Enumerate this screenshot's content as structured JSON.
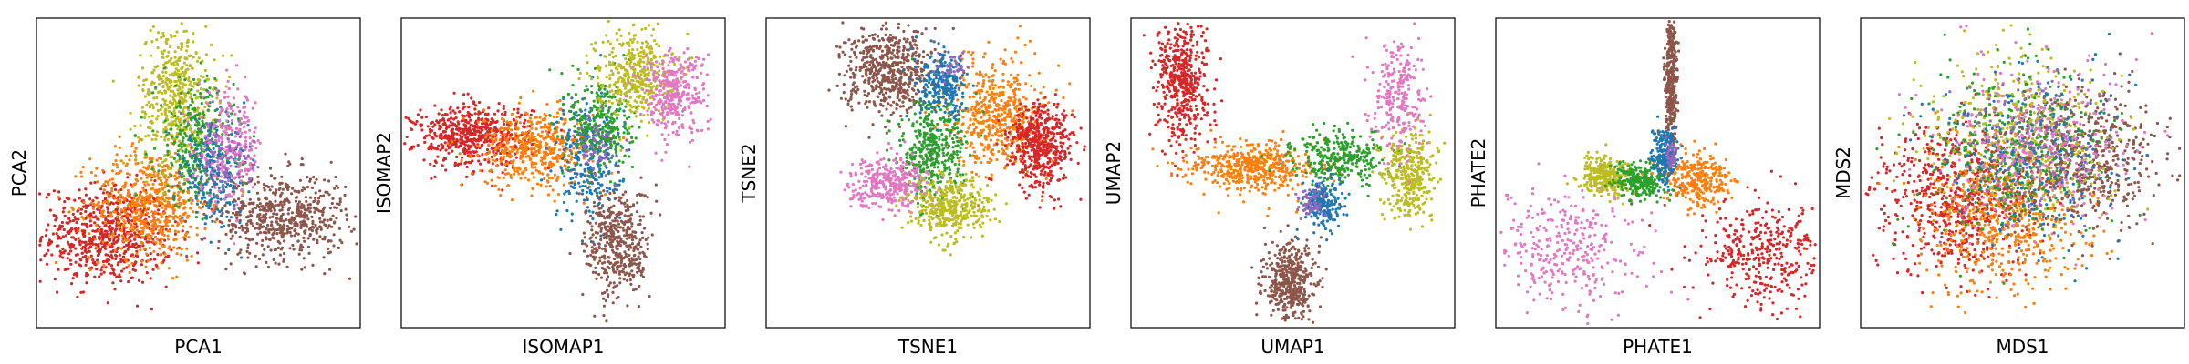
{
  "figure": {
    "description_colors": {
      "blue": "#1f77b4",
      "orange": "#ff7f0e",
      "green": "#2ca02c",
      "red": "#d62728",
      "purple": "#9467bd",
      "brown": "#8c564b",
      "pink": "#e377c2",
      "olive": "#bcbd22"
    }
  },
  "chart_data": [
    {
      "type": "scatter",
      "xlabel": "PCA1",
      "ylabel": "PCA2",
      "grid": false,
      "ticks": false,
      "clusters": [
        {
          "color": "#d62728",
          "center": [
            0.22,
            0.3
          ],
          "spread": [
            0.1,
            0.08
          ],
          "n": 700
        },
        {
          "color": "#ff7f0e",
          "center": [
            0.35,
            0.4
          ],
          "spread": [
            0.09,
            0.09
          ],
          "n": 600
        },
        {
          "color": "#8c564b",
          "center": [
            0.76,
            0.36
          ],
          "spread": [
            0.1,
            0.07
          ],
          "n": 600
        },
        {
          "color": "#bcbd22",
          "center": [
            0.43,
            0.74
          ],
          "spread": [
            0.06,
            0.12
          ],
          "n": 500
        },
        {
          "color": "#2ca02c",
          "center": [
            0.49,
            0.6
          ],
          "spread": [
            0.06,
            0.1
          ],
          "n": 300
        },
        {
          "color": "#1f77b4",
          "center": [
            0.55,
            0.5
          ],
          "spread": [
            0.05,
            0.08
          ],
          "n": 250
        },
        {
          "color": "#e377c2",
          "center": [
            0.6,
            0.58
          ],
          "spread": [
            0.05,
            0.09
          ],
          "n": 250
        },
        {
          "color": "#9467bd",
          "center": [
            0.58,
            0.55
          ],
          "spread": [
            0.04,
            0.06
          ],
          "n": 80
        }
      ]
    },
    {
      "type": "scatter",
      "xlabel": "ISOMAP1",
      "ylabel": "ISOMAP2",
      "grid": false,
      "ticks": false,
      "clusters": [
        {
          "color": "#d62728",
          "center": [
            0.22,
            0.62
          ],
          "spread": [
            0.09,
            0.05
          ],
          "n": 600
        },
        {
          "color": "#ff7f0e",
          "center": [
            0.42,
            0.58
          ],
          "spread": [
            0.09,
            0.06
          ],
          "n": 500
        },
        {
          "color": "#1f77b4",
          "center": [
            0.58,
            0.55
          ],
          "spread": [
            0.05,
            0.1
          ],
          "n": 300
        },
        {
          "color": "#2ca02c",
          "center": [
            0.62,
            0.66
          ],
          "spread": [
            0.05,
            0.08
          ],
          "n": 300
        },
        {
          "color": "#bcbd22",
          "center": [
            0.72,
            0.82
          ],
          "spread": [
            0.06,
            0.07
          ],
          "n": 400
        },
        {
          "color": "#e377c2",
          "center": [
            0.84,
            0.76
          ],
          "spread": [
            0.05,
            0.07
          ],
          "n": 350
        },
        {
          "color": "#8c564b",
          "center": [
            0.67,
            0.27
          ],
          "spread": [
            0.05,
            0.09
          ],
          "n": 450
        },
        {
          "color": "#9467bd",
          "center": [
            0.6,
            0.58
          ],
          "spread": [
            0.03,
            0.05
          ],
          "n": 60
        }
      ]
    },
    {
      "type": "scatter",
      "xlabel": "TSNE1",
      "ylabel": "TSNE2",
      "grid": false,
      "ticks": false,
      "clusters": [
        {
          "color": "#8c564b",
          "center": [
            0.38,
            0.83
          ],
          "spread": [
            0.07,
            0.07
          ],
          "n": 600
        },
        {
          "color": "#ff7f0e",
          "center": [
            0.72,
            0.69
          ],
          "spread": [
            0.07,
            0.09
          ],
          "n": 550
        },
        {
          "color": "#d62728",
          "center": [
            0.85,
            0.59
          ],
          "spread": [
            0.05,
            0.07
          ],
          "n": 500
        },
        {
          "color": "#2ca02c",
          "center": [
            0.51,
            0.56
          ],
          "spread": [
            0.05,
            0.08
          ],
          "n": 400
        },
        {
          "color": "#1f77b4",
          "center": [
            0.55,
            0.78
          ],
          "spread": [
            0.04,
            0.05
          ],
          "n": 250
        },
        {
          "color": "#e377c2",
          "center": [
            0.38,
            0.47
          ],
          "spread": [
            0.06,
            0.04
          ],
          "n": 350
        },
        {
          "color": "#bcbd22",
          "center": [
            0.57,
            0.39
          ],
          "spread": [
            0.06,
            0.05
          ],
          "n": 400
        },
        {
          "color": "#9467bd",
          "center": [
            0.58,
            0.84
          ],
          "spread": [
            0.02,
            0.02
          ],
          "n": 40
        }
      ]
    },
    {
      "type": "scatter",
      "xlabel": "UMAP1",
      "ylabel": "UMAP2",
      "grid": false,
      "ticks": false,
      "clusters": [
        {
          "color": "#d62728",
          "center": [
            0.16,
            0.8
          ],
          "spread": [
            0.04,
            0.1
          ],
          "n": 500
        },
        {
          "color": "#ff7f0e",
          "center": [
            0.38,
            0.52
          ],
          "spread": [
            0.1,
            0.04
          ],
          "n": 500
        },
        {
          "color": "#8c564b",
          "center": [
            0.49,
            0.15
          ],
          "spread": [
            0.04,
            0.06
          ],
          "n": 450
        },
        {
          "color": "#2ca02c",
          "center": [
            0.65,
            0.55
          ],
          "spread": [
            0.07,
            0.04
          ],
          "n": 300
        },
        {
          "color": "#1f77b4",
          "center": [
            0.59,
            0.4
          ],
          "spread": [
            0.03,
            0.04
          ],
          "n": 200
        },
        {
          "color": "#bcbd22",
          "center": [
            0.86,
            0.5
          ],
          "spread": [
            0.04,
            0.07
          ],
          "n": 350
        },
        {
          "color": "#e377c2",
          "center": [
            0.83,
            0.75
          ],
          "spread": [
            0.04,
            0.09
          ],
          "n": 250
        },
        {
          "color": "#9467bd",
          "center": [
            0.56,
            0.4
          ],
          "spread": [
            0.02,
            0.03
          ],
          "n": 60
        }
      ]
    },
    {
      "type": "scatter",
      "xlabel": "PHATE1",
      "ylabel": "PHATE2",
      "grid": false,
      "ticks": false,
      "clusters": [
        {
          "color": "#8c564b",
          "center": [
            0.54,
            0.8
          ],
          "spread": [
            0.01,
            0.14
          ],
          "n": 400
        },
        {
          "color": "#e377c2",
          "center": [
            0.22,
            0.24
          ],
          "spread": [
            0.12,
            0.1
          ],
          "n": 350
        },
        {
          "color": "#d62728",
          "center": [
            0.83,
            0.24
          ],
          "spread": [
            0.1,
            0.09
          ],
          "n": 400
        },
        {
          "color": "#bcbd22",
          "center": [
            0.34,
            0.49
          ],
          "spread": [
            0.04,
            0.03
          ],
          "n": 300
        },
        {
          "color": "#2ca02c",
          "center": [
            0.45,
            0.47
          ],
          "spread": [
            0.04,
            0.03
          ],
          "n": 250
        },
        {
          "color": "#ff7f0e",
          "center": [
            0.63,
            0.48
          ],
          "spread": [
            0.05,
            0.04
          ],
          "n": 300
        },
        {
          "color": "#1f77b4",
          "center": [
            0.52,
            0.56
          ],
          "spread": [
            0.02,
            0.04
          ],
          "n": 200
        },
        {
          "color": "#9467bd",
          "center": [
            0.54,
            0.55
          ],
          "spread": [
            0.01,
            0.02
          ],
          "n": 40
        }
      ]
    },
    {
      "type": "scatter",
      "xlabel": "MDS1",
      "ylabel": "MDS2",
      "grid": false,
      "ticks": false,
      "clusters": [
        {
          "color": "#d62728",
          "center": [
            0.3,
            0.42
          ],
          "spread": [
            0.12,
            0.12
          ],
          "n": 700
        },
        {
          "color": "#ff7f0e",
          "center": [
            0.45,
            0.36
          ],
          "spread": [
            0.13,
            0.12
          ],
          "n": 600
        },
        {
          "color": "#8c564b",
          "center": [
            0.68,
            0.55
          ],
          "spread": [
            0.12,
            0.11
          ],
          "n": 600
        },
        {
          "color": "#bcbd22",
          "center": [
            0.48,
            0.63
          ],
          "spread": [
            0.14,
            0.13
          ],
          "n": 450
        },
        {
          "color": "#2ca02c",
          "center": [
            0.48,
            0.58
          ],
          "spread": [
            0.14,
            0.14
          ],
          "n": 350
        },
        {
          "color": "#1f77b4",
          "center": [
            0.52,
            0.55
          ],
          "spread": [
            0.14,
            0.14
          ],
          "n": 300
        },
        {
          "color": "#e377c2",
          "center": [
            0.55,
            0.6
          ],
          "spread": [
            0.14,
            0.14
          ],
          "n": 300
        },
        {
          "color": "#9467bd",
          "center": [
            0.5,
            0.58
          ],
          "spread": [
            0.12,
            0.12
          ],
          "n": 100
        }
      ]
    }
  ]
}
